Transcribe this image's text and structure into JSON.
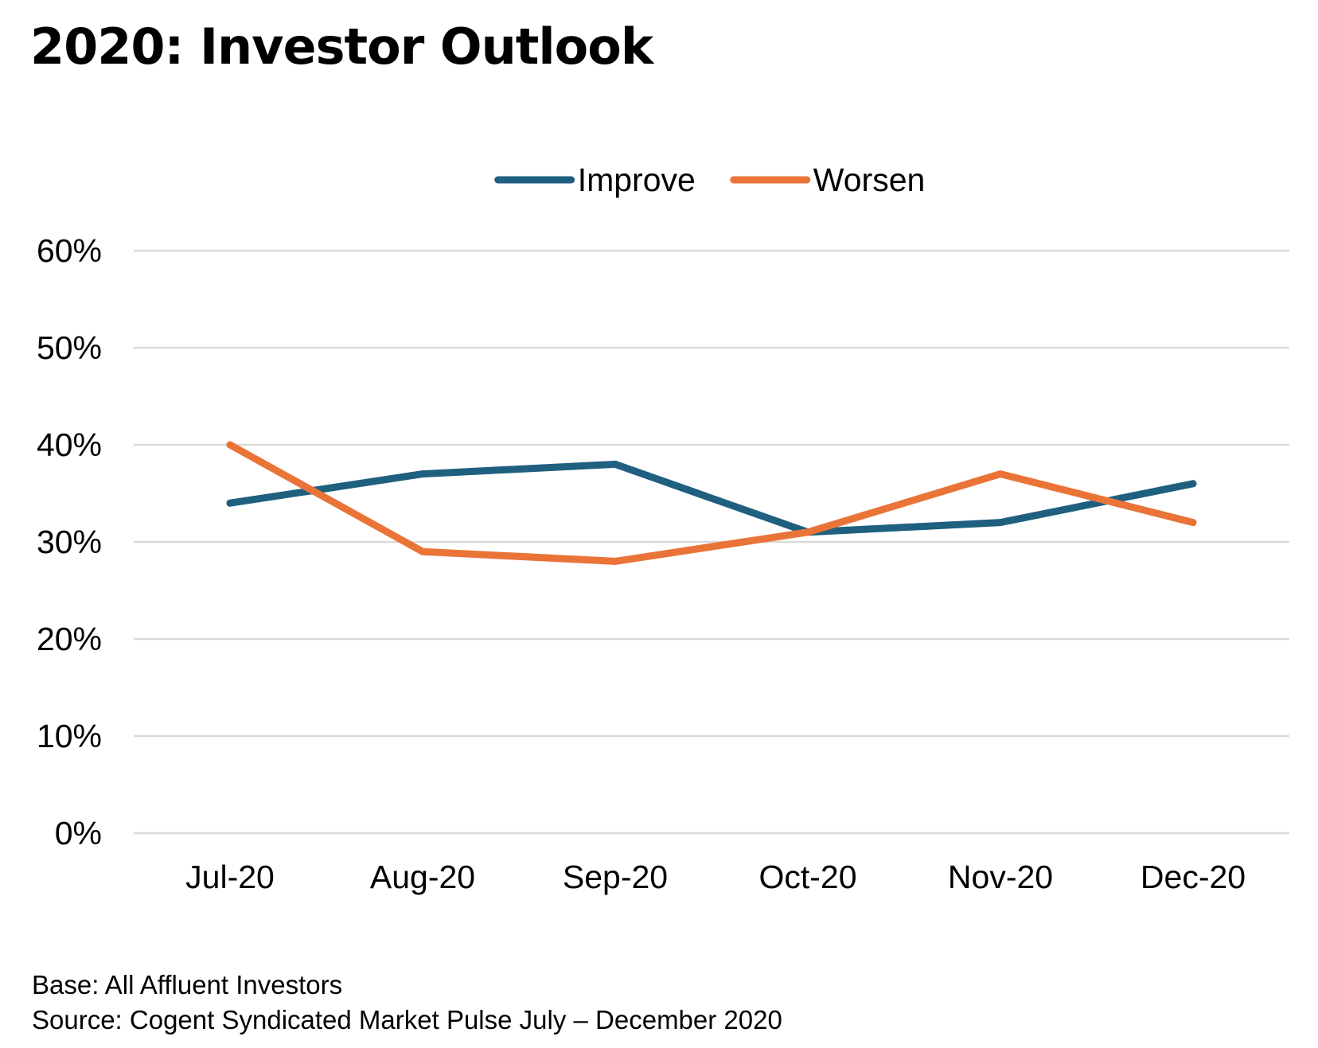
{
  "chart_data": {
    "type": "line",
    "title": "2020: Investor Outlook",
    "categories": [
      "Jul-20",
      "Aug-20",
      "Sep-20",
      "Oct-20",
      "Nov-20",
      "Dec-20"
    ],
    "series": [
      {
        "name": "Improve",
        "color": "#1f5f80",
        "values": [
          34,
          37,
          38,
          31,
          32,
          36
        ]
      },
      {
        "name": "Worsen",
        "color": "#ea7438",
        "values": [
          40,
          29,
          28,
          31,
          37,
          32
        ]
      }
    ],
    "ylim": [
      0,
      60
    ],
    "yticks": [
      0,
      10,
      20,
      30,
      40,
      50,
      60
    ],
    "ytick_format": "percent",
    "grid": true,
    "gridline_color": "#d9d9d9",
    "legend_position": "top-center",
    "xlabel": "",
    "ylabel": ""
  },
  "footnotes": {
    "base": "Base: All Affluent Investors",
    "source": "Source: Cogent Syndicated Market Pulse July – December 2020"
  }
}
